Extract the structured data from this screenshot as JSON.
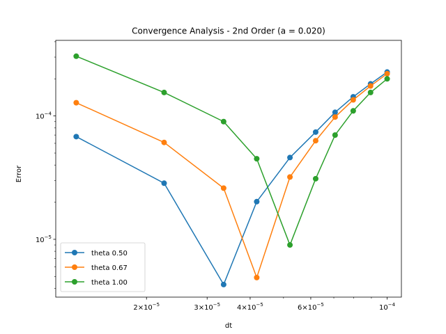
{
  "chart_data": {
    "type": "line",
    "title": "Convergence Analysis - 2nd Order (a = 0.020)",
    "xlabel": "dt",
    "ylabel": "Error",
    "xscale": "log",
    "yscale": "log",
    "xlim": [
      1.09e-05,
      0.00011
    ],
    "ylim": [
      3.4e-06,
      0.00041
    ],
    "legend_position": "lower-left",
    "grid": false,
    "x": [
      1.25e-05,
      2.25e-05,
      3.35e-05,
      4.18e-05,
      5.22e-05,
      6.2e-05,
      7.06e-05,
      7.97e-05,
      8.95e-05,
      0.0001
    ],
    "series": [
      {
        "name": "theta 0.50",
        "color": "#1f77b4",
        "values": [
          6.8e-05,
          2.85e-05,
          4.3e-06,
          2.02e-05,
          4.6e-05,
          7.4e-05,
          0.000107,
          0.000143,
          0.000182,
          0.000227
        ]
      },
      {
        "name": "theta 0.67",
        "color": "#ff7f0e",
        "values": [
          0.000128,
          6.1e-05,
          2.6e-05,
          4.9e-06,
          3.2e-05,
          6.3e-05,
          9.8e-05,
          0.000135,
          0.000175,
          0.00022
        ]
      },
      {
        "name": "theta 1.00",
        "color": "#2ca02c",
        "values": [
          0.000305,
          0.000155,
          9e-05,
          4.5e-05,
          9e-06,
          3.1e-05,
          7e-05,
          0.00011,
          0.000155,
          0.0002
        ]
      }
    ],
    "x_major_ticks": [
      {
        "value": 2e-05,
        "mantissa": "2",
        "base": "10",
        "exp": "−5"
      },
      {
        "value": 3e-05,
        "mantissa": "3",
        "base": "10",
        "exp": "−5"
      },
      {
        "value": 4e-05,
        "mantissa": "4",
        "base": "10",
        "exp": "−5"
      },
      {
        "value": 6e-05,
        "mantissa": "6",
        "base": "10",
        "exp": "−5"
      },
      {
        "value": 0.0001,
        "mantissa": "",
        "base": "10",
        "exp": "−4"
      }
    ],
    "x_minor_ticks": [
      5e-05,
      7e-05,
      8e-05,
      9e-05
    ],
    "y_major_ticks": [
      {
        "value": 1e-05,
        "base": "10",
        "exp": "−5"
      },
      {
        "value": 0.0001,
        "base": "10",
        "exp": "−4"
      }
    ],
    "y_minor_ticks": [
      4e-06,
      5e-06,
      6e-06,
      7e-06,
      8e-06,
      9e-06,
      2e-05,
      3e-05,
      4e-05,
      5e-05,
      6e-05,
      7e-05,
      8e-05,
      9e-05,
      0.0002,
      0.0003,
      0.0004
    ]
  }
}
